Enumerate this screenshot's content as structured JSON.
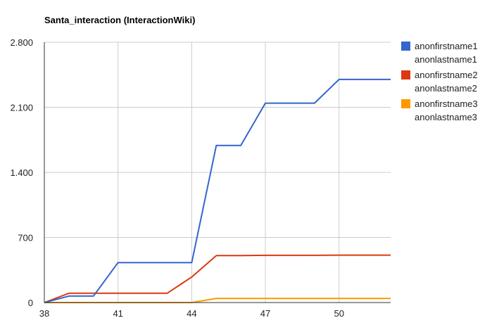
{
  "chart_data": {
    "type": "line",
    "title": "Santa_interaction (InteractionWiki)",
    "xlabel": "",
    "ylabel": "",
    "xlim": [
      38,
      52.1
    ],
    "ylim": [
      0,
      2800
    ],
    "x_ticks": [
      38,
      41,
      44,
      47,
      50
    ],
    "x_tick_labels": [
      "38",
      "41",
      "44",
      "47",
      "50"
    ],
    "y_ticks": [
      0,
      700,
      1400,
      2100,
      2800
    ],
    "y_tick_labels": [
      "0",
      "700",
      "1.400",
      "2.100",
      "2.800"
    ],
    "grid": true,
    "legend_position": "right",
    "series": [
      {
        "name": "anonfirstname1 anonlastname1",
        "legend_lines": [
          "anonfirstname1",
          "anonlastname1"
        ],
        "color": "#3366cc",
        "points": [
          [
            38,
            0
          ],
          [
            39,
            70
          ],
          [
            40,
            70
          ],
          [
            41,
            430
          ],
          [
            42,
            430
          ],
          [
            43,
            430
          ],
          [
            44,
            430
          ],
          [
            45,
            1690
          ],
          [
            46,
            1690
          ],
          [
            47,
            2145
          ],
          [
            48,
            2145
          ],
          [
            49,
            2145
          ],
          [
            50,
            2400
          ],
          [
            51,
            2400
          ],
          [
            52.1,
            2400
          ]
        ]
      },
      {
        "name": "anonfirstname2 anonlastname2",
        "legend_lines": [
          "anonfirstname2",
          "anonlastname2"
        ],
        "color": "#dc3912",
        "points": [
          [
            38,
            0
          ],
          [
            39,
            100
          ],
          [
            40,
            100
          ],
          [
            41,
            100
          ],
          [
            42,
            100
          ],
          [
            43,
            100
          ],
          [
            44,
            275
          ],
          [
            45,
            505
          ],
          [
            46,
            505
          ],
          [
            47,
            508
          ],
          [
            48,
            508
          ],
          [
            49,
            508
          ],
          [
            50,
            510
          ],
          [
            51,
            510
          ],
          [
            52.1,
            510
          ]
        ]
      },
      {
        "name": "anonfirstname3 anonlastname3",
        "legend_lines": [
          "anonfirstname3",
          "anonlastname3"
        ],
        "color": "#ff9900",
        "points": [
          [
            38,
            0
          ],
          [
            39,
            0
          ],
          [
            40,
            0
          ],
          [
            41,
            0
          ],
          [
            42,
            0
          ],
          [
            43,
            0
          ],
          [
            44,
            0
          ],
          [
            45,
            45
          ],
          [
            46,
            45
          ],
          [
            47,
            45
          ],
          [
            48,
            45
          ],
          [
            49,
            45
          ],
          [
            50,
            45
          ],
          [
            51,
            45
          ],
          [
            52.1,
            45
          ]
        ]
      }
    ]
  }
}
